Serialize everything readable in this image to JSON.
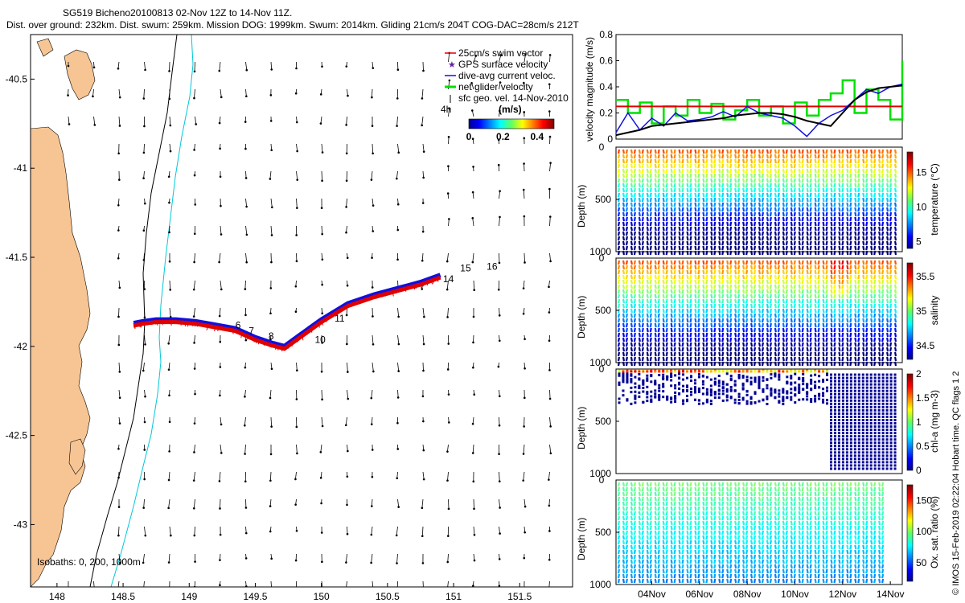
{
  "header": {
    "line1": "SG519 Bicheno20100813 02-Nov 12Z to 14-Nov 11Z.",
    "line2": "Dist. over ground: 232km. Dist. swum: 259km. Mission DOG: 1999km. Swum: 2014km. Gliding 21cm/s 204T COG-DAC=28cm/s 212T"
  },
  "credit": "© IMOS 15-Feb-2019 02:22:04 Hobart time. QC flags 1  2",
  "colors": {
    "land": "#f7c594",
    "swim": "#e00000",
    "dac": "#1010e0",
    "net": "#00e000",
    "isobath200": "#000000",
    "isobath1000": "#00c8d8"
  },
  "chart_data": [
    {
      "type": "scatter",
      "name": "track-map",
      "xlim": [
        147.8,
        151.9
      ],
      "ylim": [
        -43.35,
        -40.25
      ],
      "xticks": [
        "148",
        "148.5",
        "149",
        "149.5",
        "150",
        "150.5",
        "151",
        "151.5"
      ],
      "xtick_values": [
        148,
        148.5,
        149,
        149.5,
        150,
        150.5,
        151,
        151.5
      ],
      "yticks": [
        "-40.5",
        "-41",
        "-41.5",
        "-42",
        "-42.5",
        "-43"
      ],
      "ytick_values": [
        -40.5,
        -41,
        -41.5,
        -42,
        -42.5,
        -43
      ],
      "legend": {
        "placement": "top-right",
        "entries": [
          "25cm/s swim vector",
          "GPS surface velocity",
          "dive-avg current veloc.",
          "net glider velocity",
          "sfc geo. vel. 14-Nov-2010"
        ]
      },
      "legend_note": "4h",
      "colorbar": {
        "label": "(m/s)",
        "ticks": [
          "0",
          "0.2",
          "0.4"
        ],
        "tick_values": [
          0,
          0.2,
          0.4
        ],
        "range": [
          0,
          0.5
        ]
      },
      "isobath_label": "Isobaths: 0, 200, 1000m",
      "track": {
        "lon": [
          148.58,
          148.65,
          148.75,
          148.9,
          149.05,
          149.2,
          149.35,
          149.5,
          149.62,
          149.72,
          149.85,
          150.0,
          150.2,
          150.4,
          150.6,
          150.75,
          150.9
        ],
        "lat": [
          -41.87,
          -41.86,
          -41.85,
          -41.85,
          -41.86,
          -41.88,
          -41.9,
          -41.95,
          -41.98,
          -42.0,
          -41.93,
          -41.85,
          -41.76,
          -41.71,
          -41.67,
          -41.64,
          -41.6
        ]
      },
      "day_labels": [
        {
          "text": "6",
          "lon": 149.35,
          "lat": -41.9
        },
        {
          "text": "7",
          "lon": 149.45,
          "lat": -41.93
        },
        {
          "text": "8",
          "lon": 149.6,
          "lat": -41.96
        },
        {
          "text": "10",
          "lon": 149.95,
          "lat": -41.98
        },
        {
          "text": "11",
          "lon": 150.1,
          "lat": -41.86
        },
        {
          "text": "14",
          "lon": 150.92,
          "lat": -41.64
        },
        {
          "text": "15",
          "lon": 151.05,
          "lat": -41.58
        },
        {
          "text": "16",
          "lon": 151.25,
          "lat": -41.57
        }
      ]
    },
    {
      "type": "line",
      "name": "velocity-magnitude",
      "ylabel": "velocity magnitude (m/s)",
      "ylim": [
        0,
        0.8
      ],
      "yticks": [
        "0",
        "0.2",
        "0.4",
        "0.6",
        "0.8"
      ],
      "ytick_values": [
        0,
        0.2,
        0.4,
        0.6,
        0.8
      ],
      "x": [
        0,
        0.5,
        1,
        1.5,
        2,
        2.5,
        3,
        3.5,
        4,
        4.5,
        5,
        5.5,
        6,
        6.5,
        7,
        7.5,
        8,
        8.5,
        9,
        9.5,
        10,
        10.5,
        11,
        11.5,
        12
      ],
      "series": [
        {
          "name": "25cm/s swim vector",
          "values": [
            0.25,
            0.25,
            0.25,
            0.25,
            0.25,
            0.25,
            0.25,
            0.25,
            0.25,
            0.25,
            0.25,
            0.25,
            0.25,
            0.25,
            0.25,
            0.25,
            0.25,
            0.25,
            0.25,
            0.25,
            0.25,
            0.25,
            0.25,
            0.25,
            0.25
          ]
        },
        {
          "name": "dive-avg current veloc.",
          "values": [
            0.03,
            0.05,
            0.07,
            0.1,
            0.11,
            0.12,
            0.13,
            0.14,
            0.15,
            0.16,
            0.18,
            0.19,
            0.2,
            0.2,
            0.19,
            0.17,
            0.14,
            0.12,
            0.1,
            0.2,
            0.3,
            0.36,
            0.39,
            0.4,
            0.41
          ]
        },
        {
          "name": "dive-avg current veloc.",
          "values": [
            0.05,
            0.2,
            0.07,
            0.16,
            0.1,
            0.2,
            0.14,
            0.15,
            0.17,
            0.21,
            0.17,
            0.25,
            0.2,
            0.18,
            0.16,
            0.1,
            0.02,
            0.12,
            0.18,
            0.22,
            0.3,
            0.38,
            0.35,
            0.4,
            0.42
          ]
        },
        {
          "name": "net glider velocity",
          "values": [
            0.3,
            0.2,
            0.28,
            0.12,
            0.25,
            0.18,
            0.3,
            0.2,
            0.27,
            0.15,
            0.22,
            0.3,
            0.18,
            0.25,
            0.12,
            0.28,
            0.18,
            0.3,
            0.35,
            0.45,
            0.2,
            0.38,
            0.3,
            0.15,
            0.6
          ]
        }
      ]
    },
    {
      "type": "heatmap",
      "name": "temperature-section",
      "ylabel": "Depth (m)",
      "ylim": [
        1000,
        0
      ],
      "yticks": [
        "500",
        "1000"
      ],
      "ytick_values": [
        500,
        1000
      ],
      "colorbar": {
        "label": "temperature (°C)",
        "ticks": [
          "5",
          "10",
          "15"
        ],
        "tick_values": [
          5,
          10,
          15
        ],
        "range": [
          4,
          18
        ]
      }
    },
    {
      "type": "heatmap",
      "name": "salinity-section",
      "ylabel": "Depth (m)",
      "ylim": [
        1000,
        0
      ],
      "yticks": [
        "500",
        "1000"
      ],
      "ytick_values": [
        500,
        1000
      ],
      "colorbar": {
        "label": "salinity",
        "ticks": [
          "34.5",
          "35",
          "35.5"
        ],
        "tick_values": [
          34.5,
          35,
          35.5
        ],
        "range": [
          34.3,
          35.7
        ]
      }
    },
    {
      "type": "heatmap",
      "name": "chla-section",
      "ylabel": "Depth (m)",
      "ylim": [
        1000,
        0
      ],
      "yticks": [
        "500",
        "1000"
      ],
      "ytick_values": [
        500,
        1000
      ],
      "colorbar": {
        "label": "chl-a (mg m-3)",
        "ticks": [
          "0",
          "0.5",
          "1",
          "1.5",
          "2"
        ],
        "tick_values": [
          0,
          0.5,
          1,
          1.5,
          2
        ],
        "range": [
          0,
          2
        ]
      }
    },
    {
      "type": "heatmap",
      "name": "oxygen-section",
      "ylabel": "Depth (m)",
      "ylim": [
        1000,
        0
      ],
      "yticks": [
        "500",
        "1000"
      ],
      "ytick_values": [
        500,
        1000
      ],
      "xticks": [
        "04Nov",
        "06Nov",
        "08Nov",
        "10Nov",
        "12Nov",
        "14Nov"
      ],
      "xtick_values": [
        1.5,
        3.5,
        5.5,
        7.5,
        9.5,
        11.5
      ],
      "colorbar": {
        "label": "Ox. sat. ratio (%)",
        "ticks": [
          "50",
          "100",
          "150"
        ],
        "tick_values": [
          50,
          100,
          150
        ],
        "range": [
          20,
          175
        ]
      }
    }
  ]
}
